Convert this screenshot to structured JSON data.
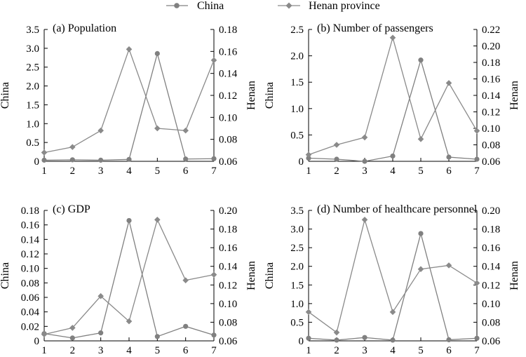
{
  "legend": {
    "position": "top-center",
    "entries": [
      {
        "label": "China",
        "marker": "circle",
        "color": "#808080"
      },
      {
        "label": "Henan province",
        "marker": "diamond",
        "color": "#8a8a8a"
      }
    ]
  },
  "chart_data": [
    {
      "type": "line",
      "title": "(a) Population",
      "x": [
        1,
        2,
        3,
        4,
        5,
        6,
        7
      ],
      "xlim": [
        1,
        7
      ],
      "ylabel": "China",
      "ylim": [
        0,
        3.5
      ],
      "yticks": [
        0,
        0.5,
        1.0,
        1.5,
        2.0,
        2.5,
        3.0,
        3.5
      ],
      "ytick_labels": [
        "0",
        "0.5",
        "1.0",
        "1.5",
        "2.0",
        "2.5",
        "3.0",
        "3.5"
      ],
      "y2label": "Henan",
      "y2lim": [
        0.06,
        0.18
      ],
      "y2ticks": [
        0.06,
        0.08,
        0.1,
        0.12,
        0.14,
        0.16,
        0.18
      ],
      "y2tick_labels": [
        "0.06",
        "0.08",
        "0.10",
        "0.12",
        "0.14",
        "0.16",
        "0.18"
      ],
      "grid": false,
      "series": [
        {
          "name": "China",
          "axis": "left",
          "marker": "circle",
          "values": [
            0.03,
            0.04,
            0.03,
            0.05,
            2.86,
            0.06,
            0.07
          ]
        },
        {
          "name": "Henan province",
          "axis": "right",
          "marker": "diamond",
          "values": [
            0.068,
            0.073,
            0.088,
            0.162,
            0.09,
            0.088,
            0.152
          ]
        }
      ]
    },
    {
      "type": "line",
      "title": "(b) Number of passengers",
      "x": [
        1,
        2,
        3,
        4,
        5,
        6,
        7
      ],
      "xlim": [
        1,
        7
      ],
      "ylabel": "China",
      "ylim": [
        0,
        2.5
      ],
      "yticks": [
        0,
        0.5,
        1.0,
        1.5,
        2.0,
        2.5
      ],
      "ytick_labels": [
        "0",
        "0.5",
        "1.0",
        "1.5",
        "2.0",
        "2.5"
      ],
      "y2label": "Henan",
      "y2lim": [
        0.06,
        0.22
      ],
      "y2ticks": [
        0.06,
        0.08,
        0.1,
        0.12,
        0.14,
        0.16,
        0.18,
        0.2,
        0.22
      ],
      "y2tick_labels": [
        "0.06",
        "0.08",
        "0.10",
        "0.12",
        "0.14",
        "0.16",
        "0.18",
        "0.20",
        "0.22"
      ],
      "grid": false,
      "series": [
        {
          "name": "China",
          "axis": "left",
          "marker": "circle",
          "values": [
            0.06,
            0.04,
            0.0,
            0.1,
            1.92,
            0.08,
            0.04
          ]
        },
        {
          "name": "Henan province",
          "axis": "right",
          "marker": "diamond",
          "values": [
            0.068,
            0.08,
            0.089,
            0.21,
            0.087,
            0.155,
            0.097
          ]
        }
      ]
    },
    {
      "type": "line",
      "title": "(c) GDP",
      "x": [
        1,
        2,
        3,
        4,
        5,
        6,
        7
      ],
      "xlim": [
        1,
        7
      ],
      "ylabel": "China",
      "ylim": [
        0,
        0.18
      ],
      "yticks": [
        0,
        0.02,
        0.04,
        0.06,
        0.08,
        0.1,
        0.12,
        0.14,
        0.16,
        0.18
      ],
      "ytick_labels": [
        "0",
        "0.02",
        "0.04",
        "0.06",
        "0.08",
        "0.10",
        "0.12",
        "0.14",
        "0.16",
        "0.18"
      ],
      "y2label": "Henan",
      "y2lim": [
        0.06,
        0.2
      ],
      "y2ticks": [
        0.06,
        0.08,
        0.1,
        0.12,
        0.14,
        0.16,
        0.18,
        0.2
      ],
      "y2tick_labels": [
        "0.06",
        "0.08",
        "0.10",
        "0.12",
        "0.14",
        "0.16",
        "0.18",
        "0.20"
      ],
      "grid": false,
      "series": [
        {
          "name": "China",
          "axis": "left",
          "marker": "circle",
          "values": [
            0.01,
            0.004,
            0.011,
            0.166,
            0.006,
            0.02,
            0.008
          ]
        },
        {
          "name": "Henan province",
          "axis": "right",
          "marker": "diamond",
          "values": [
            0.067,
            0.074,
            0.108,
            0.081,
            0.19,
            0.125,
            0.131
          ]
        }
      ]
    },
    {
      "type": "line",
      "title": "(d) Number of healthcare personnel",
      "x": [
        1,
        2,
        3,
        4,
        5,
        6,
        7
      ],
      "xlim": [
        1,
        7
      ],
      "ylabel": "China",
      "ylim": [
        0,
        3.5
      ],
      "yticks": [
        0,
        0.5,
        1.0,
        1.5,
        2.0,
        2.5,
        3.0,
        3.5
      ],
      "ytick_labels": [
        "0",
        "0.5",
        "1.0",
        "1.5",
        "2.0",
        "2.5",
        "3.0",
        "3.5"
      ],
      "y2label": "Henan",
      "y2lim": [
        0.06,
        0.2
      ],
      "y2ticks": [
        0.06,
        0.08,
        0.1,
        0.12,
        0.14,
        0.16,
        0.18,
        0.2
      ],
      "y2tick_labels": [
        "0.06",
        "0.08",
        "0.10",
        "0.12",
        "0.14",
        "0.16",
        "0.18",
        "0.20"
      ],
      "grid": false,
      "series": [
        {
          "name": "China",
          "axis": "left",
          "marker": "circle",
          "values": [
            0.07,
            0.02,
            0.09,
            0.02,
            2.88,
            0.03,
            0.07
          ]
        },
        {
          "name": "Henan province",
          "axis": "right",
          "marker": "diamond",
          "values": [
            0.091,
            0.069,
            0.19,
            0.091,
            0.137,
            0.141,
            0.122
          ]
        }
      ]
    }
  ]
}
